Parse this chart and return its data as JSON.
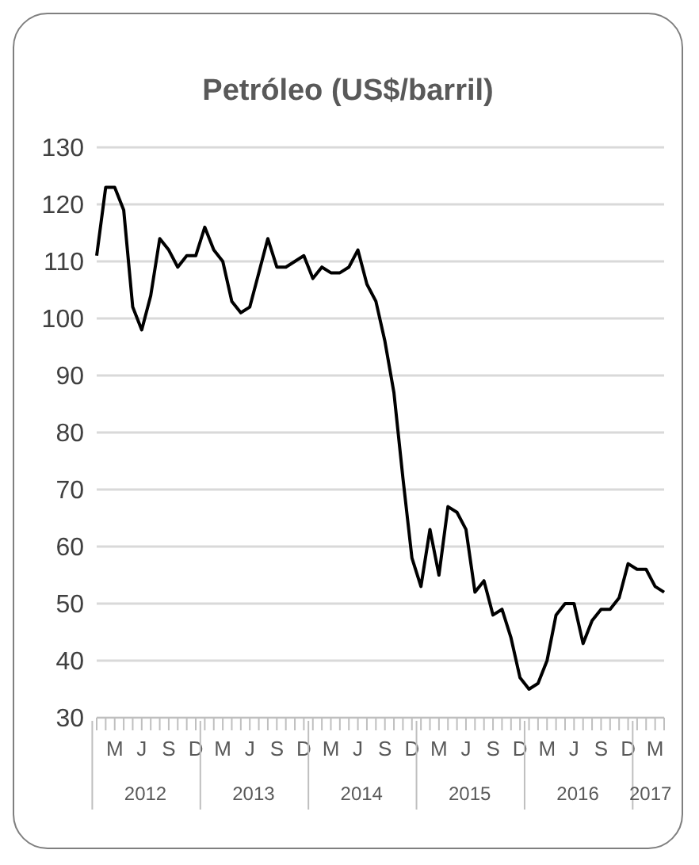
{
  "chart_data": {
    "type": "line",
    "title": "Petróleo (US$/barril)",
    "categories": [
      null,
      null,
      "M",
      null,
      null,
      "J",
      null,
      null,
      "S",
      null,
      null,
      "D",
      null,
      null,
      "M",
      null,
      null,
      "J",
      null,
      null,
      "S",
      null,
      null,
      "D",
      null,
      null,
      "M",
      null,
      null,
      "J",
      null,
      null,
      "S",
      null,
      null,
      "D",
      null,
      null,
      "M",
      null,
      null,
      "J",
      null,
      null,
      "S",
      null,
      null,
      "D",
      null,
      null,
      "M",
      null,
      null,
      "J",
      null,
      null,
      "S",
      null,
      null,
      "D",
      null,
      null,
      "M",
      null
    ],
    "series": [
      {
        "color": "#000000",
        "values": [
          111,
          123,
          123,
          119,
          102,
          98,
          104,
          114,
          112,
          109,
          111,
          111,
          116,
          112,
          110,
          103,
          101,
          102,
          108,
          114,
          109,
          109,
          110,
          111,
          107,
          109,
          108,
          108,
          109,
          112,
          106,
          103,
          96,
          87,
          72,
          58,
          53,
          63,
          55,
          67,
          66,
          63,
          52,
          54,
          48,
          49,
          44,
          37,
          35,
          36,
          40,
          48,
          50,
          50,
          43,
          47,
          49,
          49,
          51,
          57,
          56,
          56,
          53,
          52
        ]
      }
    ],
    "ylim": [
      30,
      130
    ],
    "yticks": [
      30,
      40,
      50,
      60,
      70,
      80,
      90,
      100,
      110,
      120,
      130
    ],
    "grid": "y",
    "legend": false,
    "marker": "none",
    "line_style": "solid",
    "annotations": [
      "2012",
      "2013",
      "2014",
      "2015",
      "2016",
      "2017"
    ]
  }
}
